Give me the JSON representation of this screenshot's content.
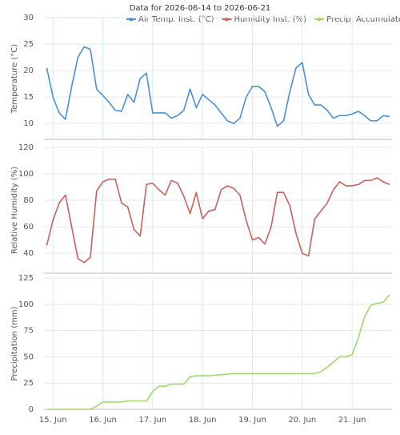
{
  "chart_data": [
    {
      "type": "line",
      "title": "Data for 2026-06-14 to 2026-06-21",
      "ylabel": "Temperature (°C)",
      "x": [
        14.875,
        15,
        15.125,
        15.25,
        15.375,
        15.5,
        15.625,
        15.75,
        15.875,
        16,
        16.125,
        16.25,
        16.375,
        16.5,
        16.625,
        16.75,
        16.875,
        17,
        17.125,
        17.25,
        17.375,
        17.5,
        17.625,
        17.75,
        17.875,
        18,
        18.125,
        18.25,
        18.375,
        18.5,
        18.625,
        18.75,
        18.875,
        19,
        19.125,
        19.25,
        19.375,
        19.5,
        19.625,
        19.75,
        19.875,
        20,
        20.125,
        20.25,
        20.375,
        20.5,
        20.625,
        20.75,
        20.875,
        21,
        21.125,
        21.25,
        21.375,
        21.5,
        21.625,
        21.75
      ],
      "series": [
        {
          "name": "Air Temp. Inst. (°C)",
          "color": "#4a8fd4",
          "values": [
            20.5,
            15,
            12,
            10.8,
            17,
            22.5,
            24.5,
            24,
            16.5,
            15.3,
            14,
            12.5,
            12.3,
            15.5,
            14,
            18.5,
            19.5,
            12,
            12,
            12,
            11,
            11.5,
            12.5,
            16.5,
            13,
            15.5,
            14.5,
            13.5,
            12,
            10.5,
            10,
            11,
            15,
            17,
            17,
            16,
            13,
            9.5,
            10.5,
            16,
            20.5,
            21.5,
            15.5,
            13.5,
            13.5,
            12.5,
            11,
            11.5,
            11.5,
            11.8,
            12.3,
            11.5,
            10.5,
            10.5,
            11.5,
            11.3
          ]
        }
      ],
      "xlim": [
        14.82,
        21.8
      ],
      "ylim": [
        7,
        30
      ],
      "yticks": [
        10,
        15,
        20,
        25,
        30
      ],
      "grid": true
    },
    {
      "type": "line",
      "ylabel": "Relative Humidity (%)",
      "x": [
        14.875,
        15,
        15.125,
        15.25,
        15.375,
        15.5,
        15.625,
        15.75,
        15.875,
        16,
        16.125,
        16.25,
        16.375,
        16.5,
        16.625,
        16.75,
        16.875,
        17,
        17.125,
        17.25,
        17.375,
        17.5,
        17.625,
        17.75,
        17.875,
        18,
        18.125,
        18.25,
        18.375,
        18.5,
        18.625,
        18.75,
        18.875,
        19,
        19.125,
        19.25,
        19.375,
        19.5,
        19.625,
        19.75,
        19.875,
        20,
        20.125,
        20.25,
        20.375,
        20.5,
        20.625,
        20.75,
        20.875,
        21,
        21.125,
        21.25,
        21.375,
        21.5,
        21.625,
        21.75
      ],
      "series": [
        {
          "name": "Humidity Inst. (%)",
          "color": "#c8625a",
          "values": [
            46,
            65,
            78,
            84,
            60,
            36,
            33,
            37,
            87,
            94,
            96,
            96,
            78,
            75,
            58,
            53,
            92,
            93,
            88,
            84,
            95,
            93,
            83,
            70,
            86,
            66,
            72,
            73,
            88,
            91,
            89,
            84,
            65,
            50,
            52,
            47,
            60,
            86,
            86,
            76,
            55,
            40,
            38,
            66,
            72,
            78,
            88,
            94,
            91,
            91,
            92,
            95,
            95,
            97,
            94,
            92
          ]
        }
      ],
      "xlim": [
        14.82,
        21.8
      ],
      "ylim": [
        25,
        120
      ],
      "yticks": [
        40,
        60,
        80,
        100,
        120
      ],
      "grid": true
    },
    {
      "type": "line",
      "ylabel": "Precipitation (mm)",
      "x": [
        14.875,
        15,
        15.125,
        15.25,
        15.375,
        15.5,
        15.625,
        15.75,
        15.875,
        16,
        16.125,
        16.25,
        16.375,
        16.5,
        16.625,
        16.75,
        16.875,
        17,
        17.125,
        17.25,
        17.375,
        17.5,
        17.625,
        17.75,
        17.875,
        18,
        18.125,
        18.25,
        18.375,
        18.5,
        18.625,
        18.75,
        18.875,
        19,
        19.125,
        19.25,
        19.375,
        19.5,
        19.625,
        19.75,
        19.875,
        20,
        20.125,
        20.25,
        20.375,
        20.5,
        20.625,
        20.75,
        20.875,
        21,
        21.125,
        21.25,
        21.375,
        21.5,
        21.625,
        21.75
      ],
      "series": [
        {
          "name": "Precip. Accumulated (mm)",
          "color": "#9fd86a",
          "values": [
            0,
            0,
            0,
            0,
            0,
            0,
            0,
            0,
            3,
            7,
            7,
            7,
            7,
            8,
            8,
            8,
            8,
            17,
            22,
            22,
            24,
            24,
            24,
            31,
            32,
            32,
            32,
            32.5,
            33,
            33.5,
            34,
            34,
            34,
            34,
            34,
            34,
            34,
            34,
            34,
            34,
            34,
            34,
            34,
            34,
            36,
            40,
            45,
            50,
            50,
            52,
            68,
            88,
            99,
            101,
            102,
            109
          ]
        }
      ],
      "xlim": [
        14.82,
        21.8
      ],
      "ylim": [
        0,
        125
      ],
      "yticks": [
        0,
        25,
        50,
        75,
        100,
        125
      ],
      "grid": true,
      "xticks": [
        {
          "value": 15,
          "label": "15. Jun"
        },
        {
          "value": 16,
          "label": "16. Jun"
        },
        {
          "value": 17,
          "label": "17. Jun"
        },
        {
          "value": 18,
          "label": "18. Jun"
        },
        {
          "value": 19,
          "label": "19. Jun"
        },
        {
          "value": 20,
          "label": "20. Jun"
        },
        {
          "value": 21,
          "label": "21. Jun"
        }
      ]
    }
  ]
}
